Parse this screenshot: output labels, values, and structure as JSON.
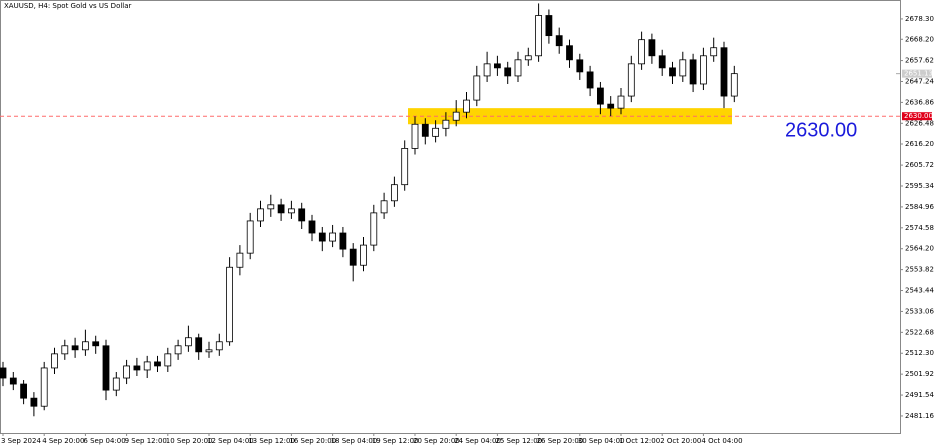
{
  "chart_data": {
    "type": "candlestick",
    "title": "XAUUSD, H4:  Spot Gold vs US Dollar",
    "ylim": [
      2472.7,
      2687.7
    ],
    "yticks": [
      {
        "value": 2678.3,
        "label": "2678.30"
      },
      {
        "value": 2668.2,
        "label": "2668.20"
      },
      2657.62,
      2647.24,
      2636.86,
      2626.48,
      {
        "value": 2616.2,
        "label": "2616.20"
      },
      2605.72,
      2595.34,
      2584.96,
      2574.58,
      {
        "value": 2564.2,
        "label": "2564.20"
      },
      2553.82,
      2543.44,
      2533.06,
      2522.68,
      {
        "value": 2512.3,
        "label": "2512.30"
      },
      2501.92,
      2491.54,
      2481.16
    ],
    "xlabels": [
      "3 Sep 2024",
      "4 Sep 20:00",
      "6 Sep 04:00",
      "9 Sep 12:00",
      "10 Sep 20:00",
      "12 Sep 04:00",
      "13 Sep 12:00",
      "16 Sep 20:00",
      "18 Sep 04:00",
      "19 Sep 12:00",
      "20 Sep 20:00",
      "24 Sep 04:00",
      "25 Sep 12:00",
      "26 Sep 20:00",
      "30 Sep 04:00",
      "1 Oct 12:00",
      "2 Oct 20:00",
      "4 Oct 04:00"
    ],
    "ohlc": [
      [
        2505,
        2508,
        2496,
        2500
      ],
      [
        2500,
        2503,
        2494,
        2497
      ],
      [
        2497,
        2499,
        2487,
        2490
      ],
      [
        2490,
        2493,
        2481,
        2486
      ],
      [
        2486,
        2508,
        2484,
        2505
      ],
      [
        2505,
        2515,
        2502,
        2512
      ],
      [
        2512,
        2519,
        2509,
        2516
      ],
      [
        2516,
        2520,
        2510,
        2514
      ],
      [
        2514,
        2524,
        2511,
        2518
      ],
      [
        2518,
        2521,
        2512,
        2516
      ],
      [
        2516,
        2519,
        2489,
        2494
      ],
      [
        2494,
        2503,
        2491,
        2500
      ],
      [
        2500,
        2509,
        2497,
        2506
      ],
      [
        2506,
        2510,
        2501,
        2504
      ],
      [
        2504,
        2511,
        2500,
        2508
      ],
      [
        2508,
        2511,
        2503,
        2506
      ],
      [
        2506,
        2515,
        2503,
        2512
      ],
      [
        2512,
        2519,
        2509,
        2516
      ],
      [
        2516,
        2526,
        2513,
        2520
      ],
      [
        2520,
        2522,
        2509,
        2513
      ],
      [
        2513,
        2518,
        2510,
        2514
      ],
      [
        2514,
        2522,
        2511,
        2518
      ],
      [
        2518,
        2560,
        2516,
        2555
      ],
      [
        2555,
        2566,
        2551,
        2562
      ],
      [
        2562,
        2582,
        2559,
        2578
      ],
      [
        2578,
        2588,
        2575,
        2584
      ],
      [
        2584,
        2591,
        2580,
        2586
      ],
      [
        2586,
        2589,
        2578,
        2582
      ],
      [
        2582,
        2588,
        2579,
        2584
      ],
      [
        2584,
        2587,
        2574,
        2578
      ],
      [
        2578,
        2581,
        2568,
        2572
      ],
      [
        2572,
        2575,
        2563,
        2568
      ],
      [
        2568,
        2576,
        2565,
        2572
      ],
      [
        2572,
        2575,
        2560,
        2564
      ],
      [
        2564,
        2567,
        2548,
        2556
      ],
      [
        2556,
        2570,
        2553,
        2566
      ],
      [
        2566,
        2586,
        2563,
        2582
      ],
      [
        2582,
        2592,
        2579,
        2588
      ],
      [
        2588,
        2600,
        2585,
        2596
      ],
      [
        2596,
        2618,
        2593,
        2614
      ],
      [
        2614,
        2630,
        2611,
        2626
      ],
      [
        2626,
        2629,
        2616,
        2620
      ],
      [
        2620,
        2628,
        2617,
        2624
      ],
      [
        2624,
        2632,
        2620,
        2628
      ],
      [
        2628,
        2638,
        2625,
        2632
      ],
      [
        2632,
        2642,
        2629,
        2638
      ],
      [
        2638,
        2655,
        2635,
        2650
      ],
      [
        2650,
        2662,
        2647,
        2656
      ],
      [
        2656,
        2660,
        2650,
        2654
      ],
      [
        2654,
        2657,
        2646,
        2650
      ],
      [
        2650,
        2662,
        2647,
        2658
      ],
      [
        2658,
        2664,
        2655,
        2660
      ],
      [
        2660,
        2686,
        2657,
        2680
      ],
      [
        2680,
        2683,
        2666,
        2670
      ],
      [
        2670,
        2674,
        2661,
        2665
      ],
      [
        2665,
        2668,
        2654,
        2658
      ],
      [
        2658,
        2661,
        2648,
        2652
      ],
      [
        2652,
        2655,
        2640,
        2644
      ],
      [
        2644,
        2647,
        2631,
        2636
      ],
      [
        2636,
        2640,
        2630,
        2634
      ],
      [
        2634,
        2644,
        2631,
        2640
      ],
      [
        2640,
        2660,
        2637,
        2656
      ],
      [
        2656,
        2672,
        2653,
        2668
      ],
      [
        2668,
        2671,
        2656,
        2660
      ],
      [
        2660,
        2663,
        2650,
        2654
      ],
      [
        2654,
        2657,
        2646,
        2650
      ],
      [
        2650,
        2662,
        2647,
        2658
      ],
      [
        2658,
        2661,
        2642,
        2646
      ],
      [
        2646,
        2664,
        2643,
        2660
      ],
      [
        2660,
        2669,
        2657,
        2664
      ],
      [
        2664,
        2667,
        2634,
        2640
      ],
      [
        2640,
        2655,
        2637,
        2651.13
      ]
    ],
    "up_color": "#ffffff",
    "down_color": "#000000",
    "hline": {
      "value": 2630,
      "label": "2630.00",
      "color": "#ff6b6b"
    },
    "current_price": {
      "value": 2651.13,
      "label": "2651.13"
    },
    "zone": {
      "low": 2626,
      "high": 2634,
      "color": "#ffd400"
    },
    "annotation": {
      "text": "2630.00",
      "color": "#1a1adb"
    }
  }
}
